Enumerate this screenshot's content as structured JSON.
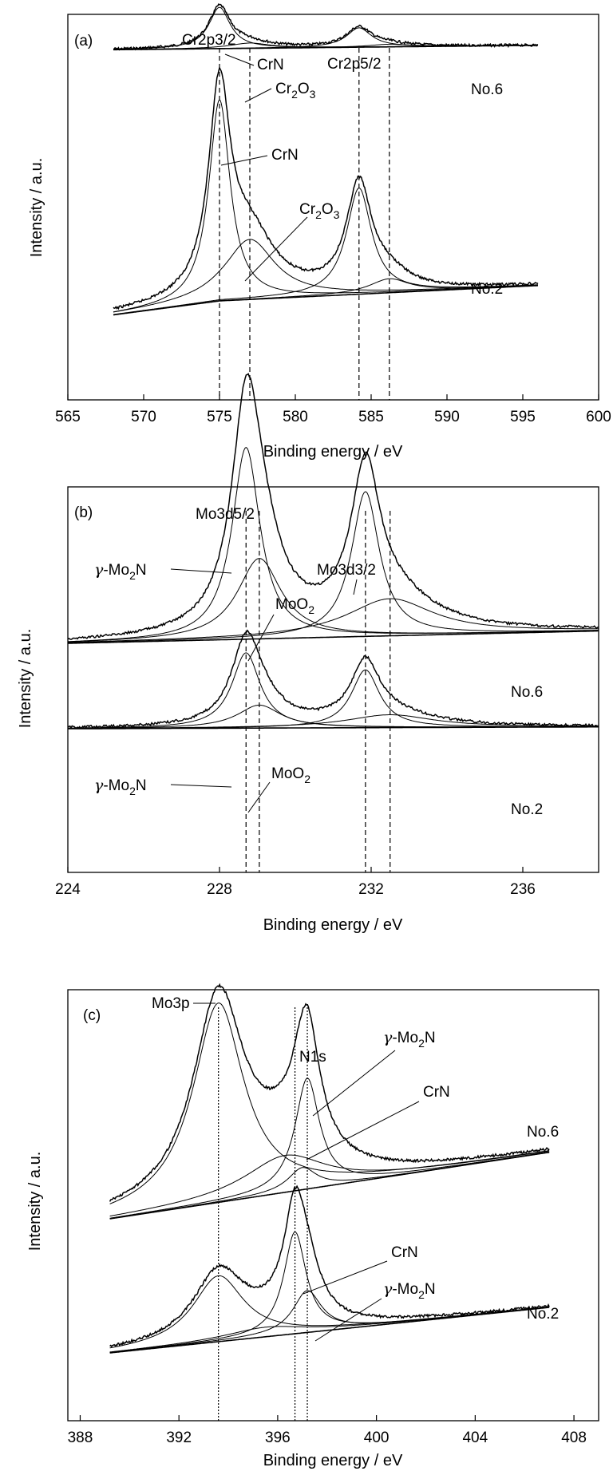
{
  "chart_data": [
    {
      "type": "line",
      "panel_label": "(a)",
      "xlabel": "Binding energy / eV",
      "ylabel": "Intensity / a.u.",
      "xlim": [
        565,
        600
      ],
      "ticks": [
        565,
        570,
        575,
        580,
        585,
        590,
        595,
        600
      ],
      "x_range": [
        568,
        596
      ],
      "grid": false,
      "series": [
        {
          "name": "No.6",
          "baseline": [
            [
              568,
              0.57
            ],
            [
              596,
              0.62
            ]
          ],
          "peaks": [
            {
              "center": 575.0,
              "height": 0.47,
              "width": 0.85,
              "label": "CrN"
            },
            {
              "center": 577.0,
              "height": 0.06,
              "width": 1.6,
              "label": "Cr2O3"
            },
            {
              "center": 584.2,
              "height": 0.22,
              "width": 1.0
            },
            {
              "center": 586.2,
              "height": 0.03,
              "width": 1.6
            }
          ]
        },
        {
          "name": "No.2",
          "baseline": [
            [
              568,
              0.02
            ],
            [
              575,
              0.12
            ],
            [
              596,
              0.23
            ]
          ],
          "peaks": [
            {
              "center": 575.0,
              "height": 1.44,
              "width": 0.85,
              "label": "CrN"
            },
            {
              "center": 577.0,
              "height": 0.43,
              "width": 2.0,
              "label": "Cr2O3"
            },
            {
              "center": 584.2,
              "height": 0.76,
              "width": 1.0
            },
            {
              "center": 586.2,
              "height": 0.1,
              "width": 1.6
            }
          ]
        }
      ],
      "reference_lines": [
        575.0,
        577.0,
        584.2,
        586.2
      ],
      "annotations": {
        "cr2p32": "Cr2p3/2",
        "crn_top": "CrN",
        "cr2o3_top": "Cr",
        "cr2o3_top_sub1": "2",
        "cr2o3_top_mid": "O",
        "cr2o3_top_sub2": "3",
        "cr2p52": "Cr2p5/2",
        "no6": "No.6",
        "crn_mid": "CrN",
        "cr2o3_mid": "Cr",
        "cr2o3_mid_sub1": "2",
        "cr2o3_mid_mid": "O",
        "cr2o3_mid_sub2": "3",
        "no2": "No.2"
      }
    },
    {
      "type": "line",
      "panel_label": "(b)",
      "xlabel": "Binding energy / eV",
      "ylabel": "Intensity / a.u.",
      "xlim": [
        224,
        238
      ],
      "ticks": [
        224,
        228,
        232,
        236
      ],
      "x_range": [
        224,
        238
      ],
      "grid": false,
      "series": [
        {
          "name": "No.6",
          "baseline": [
            [
              224,
              0.0
            ],
            [
              238,
              0.1
            ]
          ],
          "peaks": [
            {
              "center": 228.7,
              "height": 1.55,
              "width": 0.45,
              "label": "γ-Mo2N"
            },
            {
              "center": 229.05,
              "height": 0.65,
              "width": 0.7,
              "label": "MoO2"
            },
            {
              "center": 231.85,
              "height": 1.17,
              "width": 0.45
            },
            {
              "center": 232.5,
              "height": 0.3,
              "width": 1.4
            }
          ]
        },
        {
          "name": "No.2",
          "baseline": [
            [
              224,
              0.0
            ],
            [
              238,
              0.02
            ]
          ],
          "peaks": [
            {
              "center": 228.7,
              "height": 0.82,
              "width": 0.45,
              "label": "γ-Mo2N"
            },
            {
              "center": 229.05,
              "height": 0.25,
              "width": 0.7,
              "label": "MoO2"
            },
            {
              "center": 231.85,
              "height": 0.63,
              "width": 0.45
            },
            {
              "center": 232.5,
              "height": 0.14,
              "width": 1.4
            }
          ]
        }
      ],
      "reference_lines": [
        228.7,
        229.05,
        231.85,
        232.5
      ],
      "annotations": {
        "mo3d52": "Mo3d5/2",
        "gamma6_prefix": "γ",
        "gamma6_text": "-Mo",
        "gamma6_sub": "2",
        "gamma6_end": "N",
        "moo2_6": "MoO",
        "moo2_6_sub": "2",
        "mo3d32": "Mo3d3/2",
        "no6": "No.6",
        "gamma2_prefix": "γ",
        "gamma2_text": "-Mo",
        "gamma2_sub": "2",
        "gamma2_end": "N",
        "moo2_2": "MoO",
        "moo2_2_sub": "2",
        "no2": "No.2"
      }
    },
    {
      "type": "line",
      "panel_label": "(c)",
      "xlabel": "Binding energy / eV",
      "ylabel": "Intensity / a.u.",
      "xlim": [
        387.5,
        409
      ],
      "ticks": [
        388,
        392,
        396,
        400,
        404,
        408
      ],
      "x_range": [
        389.2,
        407
      ],
      "grid": false,
      "series": [
        {
          "name": "No.6",
          "baseline": [
            [
              389.2,
              0.0
            ],
            [
              407,
              0.45
            ]
          ],
          "peaks": [
            {
              "center": 393.6,
              "height": 1.35,
              "width": 1.25
            },
            {
              "center": 396.3,
              "height": 0.25,
              "width": 2.0
            },
            {
              "center": 397.2,
              "height": 0.75,
              "width": 0.6,
              "label": "γ-Mo2N"
            },
            {
              "center": 397.0,
              "height": 0.15,
              "width": 0.7,
              "label": "CrN"
            }
          ]
        },
        {
          "name": "No.2",
          "baseline": [
            [
              389.2,
              0.0
            ],
            [
              407,
              0.38
            ]
          ],
          "peaks": [
            {
              "center": 393.6,
              "height": 0.55,
              "width": 1.25
            },
            {
              "center": 395.5,
              "height": 0.08,
              "width": 2.0
            },
            {
              "center": 396.7,
              "height": 0.85,
              "width": 0.55,
              "label": "CrN"
            },
            {
              "center": 397.2,
              "height": 0.35,
              "width": 0.7,
              "label": "γ-Mo2N"
            }
          ]
        }
      ],
      "reference_lines": [
        393.6,
        396.7,
        397.2
      ],
      "annotations": {
        "mo3p": "Mo3p",
        "n1s": "N1s",
        "gamma6_prefix": "γ",
        "gamma6_text": "-Mo",
        "gamma6_sub": "2",
        "gamma6_end": "N",
        "crn6": "CrN",
        "no6": "No.6",
        "crn2": "CrN",
        "gamma2_prefix": "γ",
        "gamma2_text": "-Mo",
        "gamma2_sub": "2",
        "gamma2_end": "N",
        "no2": "No.2"
      }
    }
  ]
}
